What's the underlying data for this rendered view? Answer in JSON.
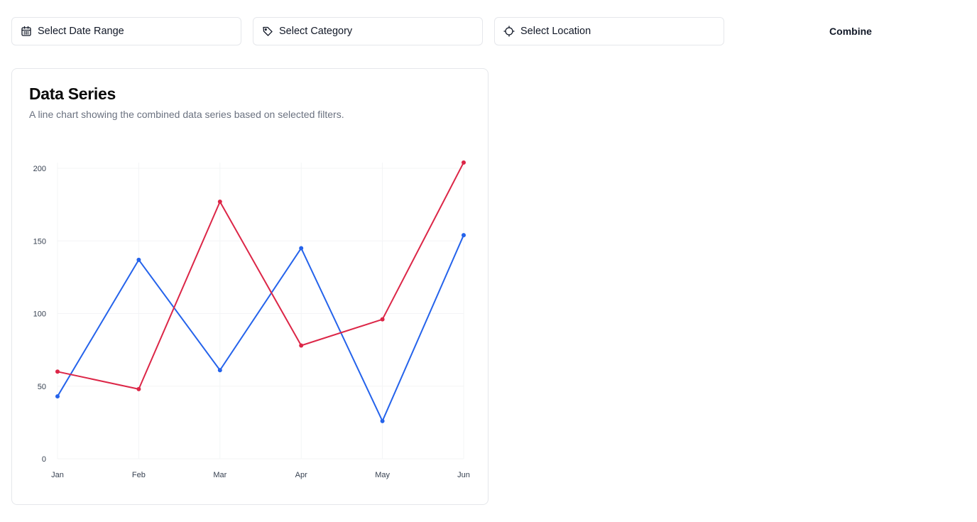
{
  "filters": {
    "date_range": {
      "label": "Select Date Range",
      "icon": "calendar-icon"
    },
    "category": {
      "label": "Select Category",
      "icon": "tag-icon"
    },
    "location": {
      "label": "Select Location",
      "icon": "crosshair-icon"
    }
  },
  "combine_label": "Combine",
  "card": {
    "title": "Data Series",
    "description": "A line chart showing the combined data series based on selected filters."
  },
  "chart_data": {
    "type": "line",
    "categories": [
      "Jan",
      "Feb",
      "Mar",
      "Apr",
      "May",
      "Jun"
    ],
    "ylim": [
      0,
      200
    ],
    "yticks": [
      0,
      50,
      100,
      150,
      200
    ],
    "grid": true,
    "series": [
      {
        "color": "#2563eb",
        "values": [
          43,
          137,
          61,
          145,
          26,
          154
        ]
      },
      {
        "color": "#dc2647",
        "values": [
          60,
          48,
          177,
          78,
          96,
          204
        ]
      }
    ]
  }
}
